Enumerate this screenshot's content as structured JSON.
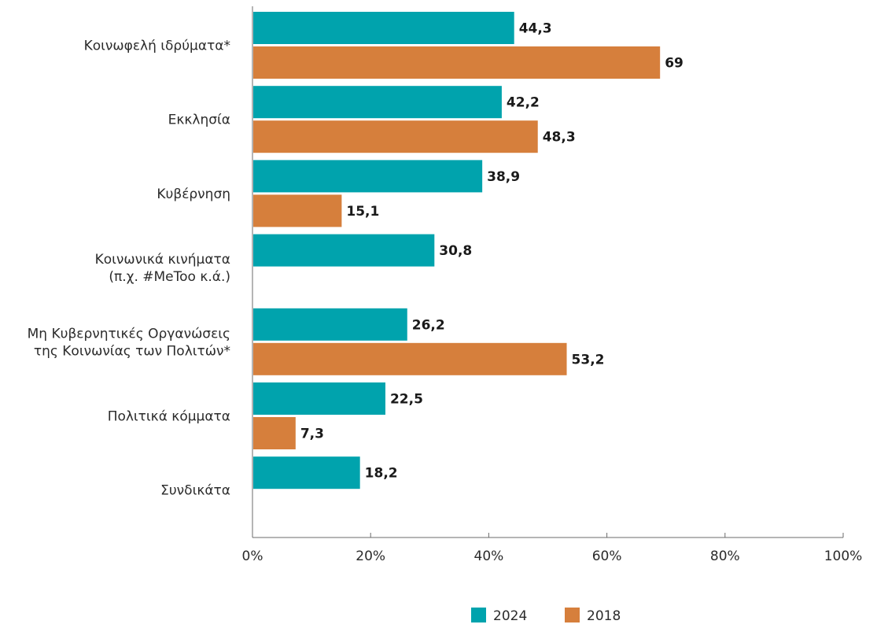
{
  "chart_data": {
    "type": "bar",
    "orientation": "horizontal",
    "categories": [
      [
        "Κοινωφελή ιδρύματα*"
      ],
      [
        "Εκκλησία"
      ],
      [
        "Κυβέρνηση"
      ],
      [
        "Κοινωνικά κινήματα",
        "(π.χ. #MeToo κ.ά.)"
      ],
      [
        "Μη Κυβερνητικές Οργανώσεις",
        "της Κοινωνίας των Πολιτών*"
      ],
      [
        "Πολιτικά κόμματα"
      ],
      [
        "Συνδικάτα"
      ]
    ],
    "series": [
      {
        "name": "2024",
        "color": "#00A3AD",
        "values": [
          44.3,
          42.2,
          38.9,
          30.8,
          26.2,
          22.5,
          18.2
        ],
        "labels": [
          "44,3",
          "42,2",
          "38,9",
          "30,8",
          "26,2",
          "22,5",
          "18,2"
        ]
      },
      {
        "name": "2018",
        "color": "#D67F3C",
        "values": [
          69,
          48.3,
          15.1,
          null,
          53.2,
          7.3,
          null
        ],
        "labels": [
          "69",
          "48,3",
          "15,1",
          null,
          "53,2",
          "7,3",
          null
        ]
      }
    ],
    "xlim": [
      0,
      100
    ],
    "xticks": [
      0,
      20,
      40,
      60,
      80,
      100
    ],
    "xtick_labels": [
      "0%",
      "20%",
      "40%",
      "60%",
      "80%",
      "100%"
    ],
    "grid": false,
    "legend_position": "bottom-center"
  }
}
